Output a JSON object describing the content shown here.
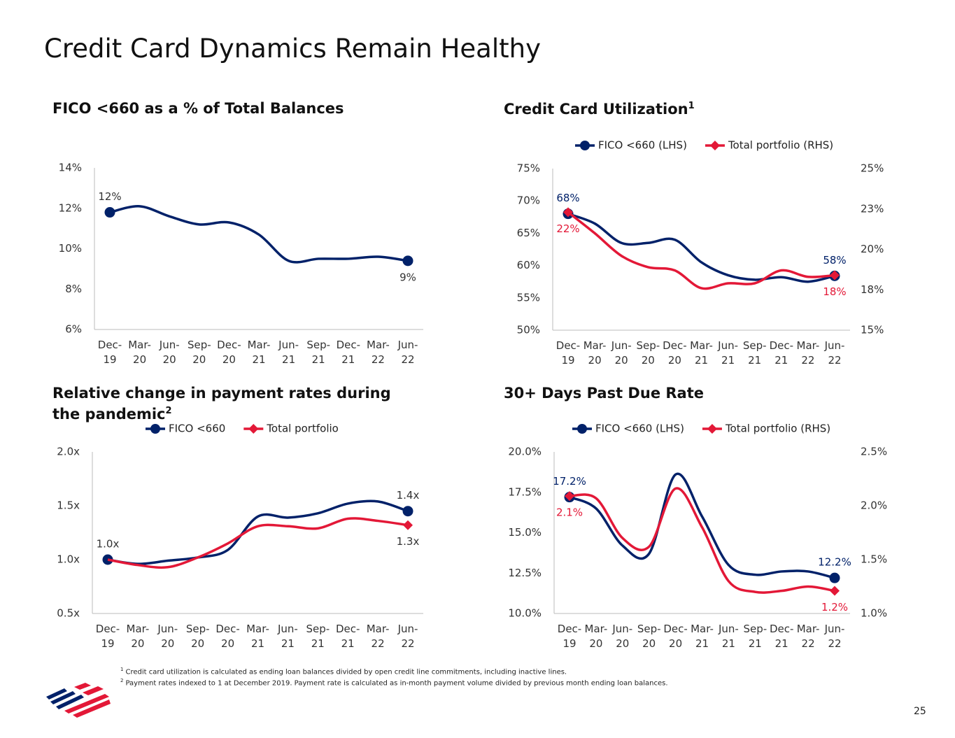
{
  "title": "Credit Card Dynamics Remain Healthy",
  "footnotes": [
    {
      "mark": "1",
      "text": "Credit card utilization is calculated as ending loan balances divided by open credit line commitments, including inactive lines."
    },
    {
      "mark": "2",
      "text": "Payment rates indexed to 1 at December 2019. Payment rate is calculated as in-month payment volume divided by previous month ending loan balances."
    }
  ],
  "page_number": "25",
  "chart_data": [
    {
      "type": "line",
      "title": "FICO <660 as a % of Total Balances",
      "categories": [
        "Dec-19",
        "Mar-20",
        "Jun-20",
        "Sep-20",
        "Dec-20",
        "Mar-21",
        "Jun-21",
        "Sep-21",
        "Dec-21",
        "Mar-22",
        "Jun-22"
      ],
      "series": [
        {
          "name": "FICO <660",
          "color": "#012169",
          "marker": "circle",
          "values": [
            11.8,
            12.1,
            11.6,
            11.2,
            11.3,
            10.7,
            9.4,
            9.5,
            9.5,
            9.6,
            9.4
          ],
          "value_labels": [
            "12%",
            null,
            null,
            null,
            null,
            null,
            null,
            null,
            null,
            null,
            "9%"
          ]
        }
      ],
      "ylim": [
        6,
        14
      ],
      "yticks": [
        {
          "value": 6,
          "label": "6%"
        },
        {
          "value": 8,
          "label": "8%"
        },
        {
          "value": 10,
          "label": "10%"
        },
        {
          "value": 12,
          "label": "12%"
        },
        {
          "value": 14,
          "label": "14%"
        }
      ],
      "legend": false
    },
    {
      "type": "line",
      "title": "Credit Card Utilization",
      "title_footnote": "1",
      "categories": [
        "Dec-19",
        "Mar-20",
        "Jun-20",
        "Sep-20",
        "Dec-20",
        "Mar-21",
        "Jun-21",
        "Sep-21",
        "Dec-21",
        "Mar-22",
        "Jun-22"
      ],
      "series": [
        {
          "name": "FICO <660 (LHS)",
          "color": "#012169",
          "marker": "circle",
          "values": [
            68,
            66.5,
            63.5,
            63.5,
            64,
            60.5,
            58.5,
            57.8,
            58.2,
            57.5,
            58.4
          ],
          "value_labels": [
            "68%",
            null,
            null,
            null,
            null,
            null,
            null,
            null,
            null,
            null,
            "58%"
          ]
        },
        {
          "name": "Total portfolio (RHS)",
          "color": "#e31837",
          "marker": "diamond",
          "axis": "y2",
          "values": [
            22.3,
            21,
            19.6,
            18.9,
            18.7,
            17.6,
            17.9,
            17.9,
            18.7,
            18.3,
            18.4
          ],
          "value_labels": [
            "22%",
            null,
            null,
            null,
            null,
            null,
            null,
            null,
            null,
            null,
            "18%"
          ]
        }
      ],
      "ylim": [
        50,
        75
      ],
      "yticks": [
        {
          "value": 50,
          "label": "50%"
        },
        {
          "value": 55,
          "label": "55%"
        },
        {
          "value": 60,
          "label": "60%"
        },
        {
          "value": 65,
          "label": "65%"
        },
        {
          "value": 70,
          "label": "70%"
        },
        {
          "value": 75,
          "label": "75%"
        }
      ],
      "y2lim": [
        15,
        25
      ],
      "y2ticks": [
        {
          "value": 15,
          "label": "15%"
        },
        {
          "value": 17.5,
          "label": "18%"
        },
        {
          "value": 20,
          "label": "20%"
        },
        {
          "value": 22.5,
          "label": "23%"
        },
        {
          "value": 25,
          "label": "25%"
        }
      ],
      "legend": true
    },
    {
      "type": "line",
      "title": "Relative change in payment rates during the pandemic",
      "title_footnote": "2",
      "categories": [
        "Dec-19",
        "Mar-20",
        "Jun-20",
        "Sep-20",
        "Dec-20",
        "Mar-21",
        "Jun-21",
        "Sep-21",
        "Dec-21",
        "Mar-22",
        "Jun-22"
      ],
      "series": [
        {
          "name": "FICO <660",
          "color": "#012169",
          "marker": "circle",
          "values": [
            1,
            0.96,
            0.99,
            1.02,
            1.09,
            1.4,
            1.39,
            1.43,
            1.52,
            1.54,
            1.45
          ],
          "value_labels": [
            "1.0x",
            null,
            null,
            null,
            null,
            null,
            null,
            null,
            null,
            null,
            "1.4x"
          ]
        },
        {
          "name": "Total portfolio",
          "color": "#e31837",
          "marker": "diamond",
          "values": [
            1,
            0.95,
            0.93,
            1.02,
            1.15,
            1.31,
            1.31,
            1.29,
            1.38,
            1.36,
            1.32
          ],
          "value_labels": [
            null,
            null,
            null,
            null,
            null,
            null,
            null,
            null,
            null,
            null,
            "1.3x"
          ]
        }
      ],
      "ylim": [
        0.5,
        2
      ],
      "yticks": [
        {
          "value": 0.5,
          "label": "0.5x"
        },
        {
          "value": 1,
          "label": "1.0x"
        },
        {
          "value": 1.5,
          "label": "1.5x"
        },
        {
          "value": 2,
          "label": "2.0x"
        }
      ],
      "legend": true
    },
    {
      "type": "line",
      "title": "30+ Days Past Due Rate",
      "categories": [
        "Dec-19",
        "Mar-20",
        "Jun-20",
        "Sep-20",
        "Dec-20",
        "Mar-21",
        "Jun-21",
        "Sep-21",
        "Dec-21",
        "Mar-22",
        "Jun-22"
      ],
      "series": [
        {
          "name": "FICO <660 (LHS)",
          "color": "#012169",
          "marker": "circle",
          "values": [
            17.2,
            16.5,
            14.2,
            13.7,
            18.6,
            16,
            13,
            12.4,
            12.6,
            12.6,
            12.2
          ],
          "value_labels": [
            "17.2%",
            null,
            null,
            null,
            null,
            null,
            null,
            null,
            null,
            null,
            "12.2%"
          ]
        },
        {
          "name": "Total portfolio (RHS)",
          "color": "#e31837",
          "marker": "diamond",
          "axis": "y2",
          "values": [
            2.09,
            2.07,
            1.7,
            1.62,
            2.16,
            1.8,
            1.3,
            1.2,
            1.21,
            1.25,
            1.21
          ],
          "value_labels": [
            "2.1%",
            null,
            null,
            null,
            null,
            null,
            null,
            null,
            null,
            null,
            "1.2%"
          ]
        }
      ],
      "ylim": [
        10,
        20
      ],
      "yticks": [
        {
          "value": 10,
          "label": "10.0%"
        },
        {
          "value": 12.5,
          "label": "12.5%"
        },
        {
          "value": 15,
          "label": "15.0%"
        },
        {
          "value": 17.5,
          "label": "17.5%"
        },
        {
          "value": 20,
          "label": "20.0%"
        }
      ],
      "y2lim": [
        1,
        2.5
      ],
      "y2ticks": [
        {
          "value": 1,
          "label": "1.0%"
        },
        {
          "value": 1.5,
          "label": "1.5%"
        },
        {
          "value": 2,
          "label": "2.0%"
        },
        {
          "value": 2.5,
          "label": "2.5%"
        }
      ],
      "legend": true
    }
  ]
}
